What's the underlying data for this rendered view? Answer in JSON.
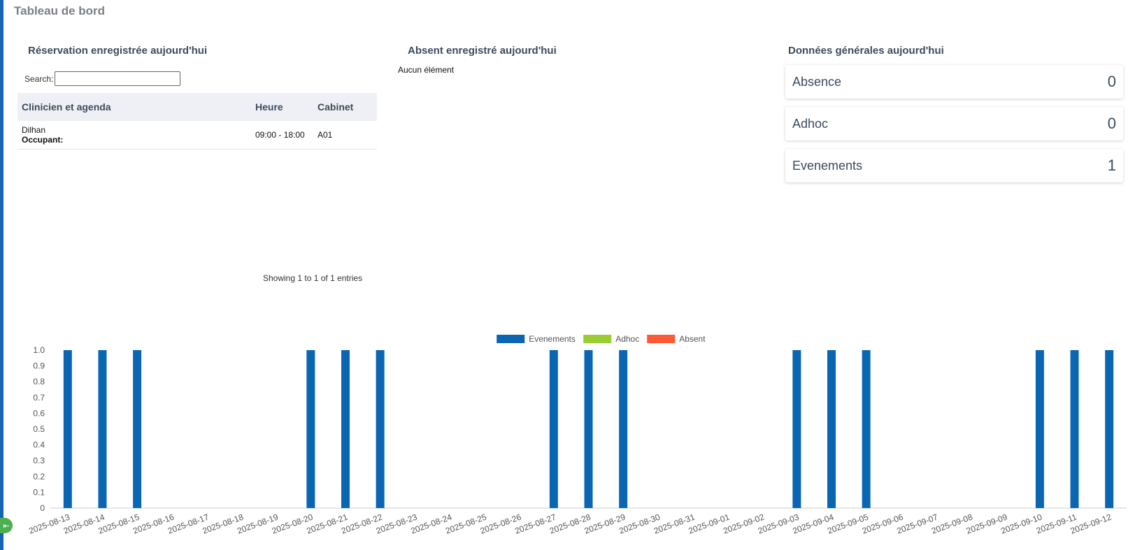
{
  "header": {
    "title": "Tableau de bord"
  },
  "reservations": {
    "title": "Réservation enregistrée aujourd'hui",
    "search_label": "Search:",
    "search_value": "",
    "columns": [
      "Clinicien et agenda",
      "Heure",
      "Cabinet"
    ],
    "rows": [
      {
        "name": "Dilhan",
        "occupant_label": "Occupant:",
        "time": "09:00 - 18:00",
        "room": "A01"
      }
    ],
    "footer": "Showing 1 to 1 of 1 entries"
  },
  "absent": {
    "title": "Absent enregistré aujourd'hui",
    "empty": "Aucun élément"
  },
  "general": {
    "title": "Données générales aujourd'hui",
    "stats": [
      {
        "label": "Absence",
        "value": "0"
      },
      {
        "label": "Adhoc",
        "value": "0"
      },
      {
        "label": "Evenements",
        "value": "1"
      }
    ]
  },
  "chart_data": {
    "type": "bar",
    "legend_position": "top-center",
    "grid": false,
    "ylim": [
      0,
      1.0
    ],
    "y_ticks": [
      "0",
      "0.1",
      "0.2",
      "0.3",
      "0.4",
      "0.5",
      "0.6",
      "0.7",
      "0.8",
      "0.9",
      "1.0"
    ],
    "categories": [
      "2025-08-13",
      "2025-08-14",
      "2025-08-15",
      "2025-08-16",
      "2025-08-17",
      "2025-08-18",
      "2025-08-19",
      "2025-08-20",
      "2025-08-21",
      "2025-08-22",
      "2025-08-23",
      "2025-08-24",
      "2025-08-25",
      "2025-08-26",
      "2025-08-27",
      "2025-08-28",
      "2025-08-29",
      "2025-08-30",
      "2025-08-31",
      "2025-09-01",
      "2025-09-02",
      "2025-09-03",
      "2025-09-04",
      "2025-09-05",
      "2025-09-06",
      "2025-09-07",
      "2025-09-08",
      "2025-09-09",
      "2025-09-10",
      "2025-09-11",
      "2025-09-12"
    ],
    "series": [
      {
        "name": "Evenements",
        "color": "#0a66b2",
        "values": [
          1,
          1,
          1,
          0,
          0,
          0,
          0,
          1,
          1,
          1,
          0,
          0,
          0,
          0,
          1,
          1,
          1,
          0,
          0,
          0,
          0,
          1,
          1,
          1,
          0,
          0,
          0,
          0,
          1,
          1,
          1
        ]
      },
      {
        "name": "Adhoc",
        "color": "#9acd32",
        "values": [
          0,
          0,
          0,
          0,
          0,
          0,
          0,
          0,
          0,
          0,
          0,
          0,
          0,
          0,
          0,
          0,
          0,
          0,
          0,
          0,
          0,
          0,
          0,
          0,
          0,
          0,
          0,
          0,
          0,
          0,
          0
        ]
      },
      {
        "name": "Absent",
        "color": "#ff5a36",
        "values": [
          0,
          0,
          0,
          0,
          0,
          0,
          0,
          0,
          0,
          0,
          0,
          0,
          0,
          0,
          0,
          0,
          0,
          0,
          0,
          0,
          0,
          0,
          0,
          0,
          0,
          0,
          0,
          0,
          0,
          0,
          0
        ]
      }
    ]
  }
}
